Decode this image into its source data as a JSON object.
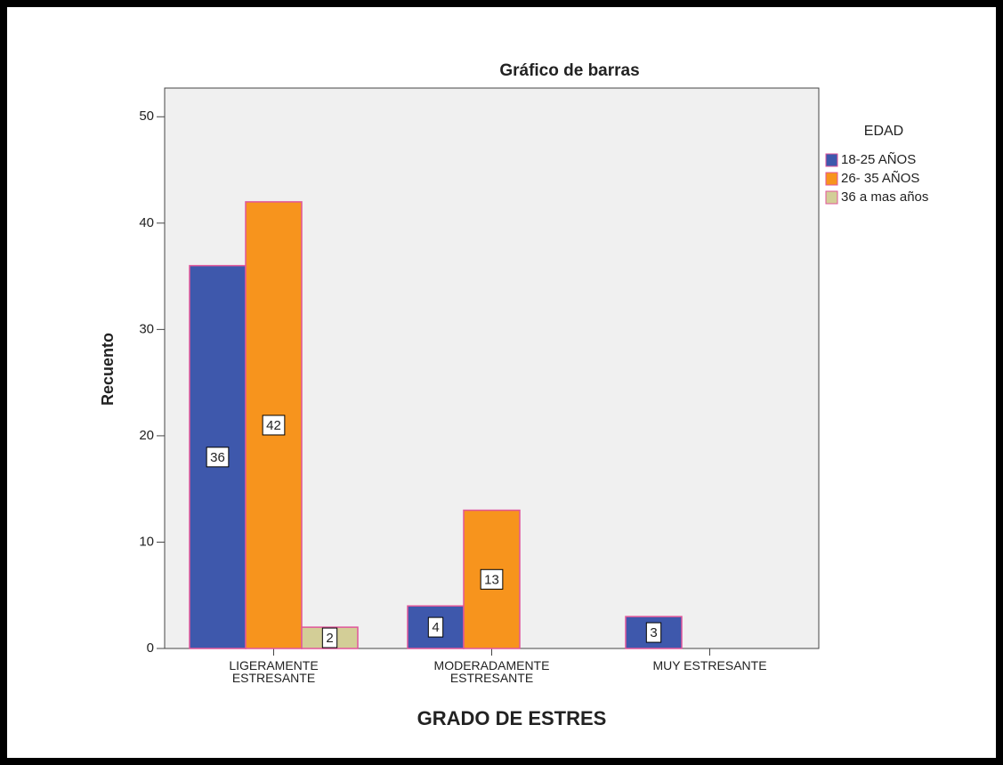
{
  "chart_data": {
    "type": "bar",
    "title": "Gráfico de barras",
    "x_label": "GRADO DE ESTRES",
    "y_label": "Recuento",
    "legend_title": "EDAD",
    "legend_position": "right",
    "categories": [
      "LIGERAMENTE ESTRESANTE",
      "MODERADAMENTE ESTRESANTE",
      "MUY ESTRESANTE"
    ],
    "series": [
      {
        "name": "18-25 AÑOS",
        "color": "#3e58ac",
        "values": [
          36,
          4,
          3
        ]
      },
      {
        "name": "26- 35 AÑOS",
        "color": "#f7941d",
        "values": [
          42,
          13,
          null
        ]
      },
      {
        "name": "36 a mas años",
        "color": "#d3ce97",
        "values": [
          2,
          null,
          null
        ]
      }
    ],
    "ylim": [
      0,
      52.7
    ],
    "yticks": [
      0,
      10,
      20,
      30,
      40,
      50
    ],
    "grid": false
  }
}
